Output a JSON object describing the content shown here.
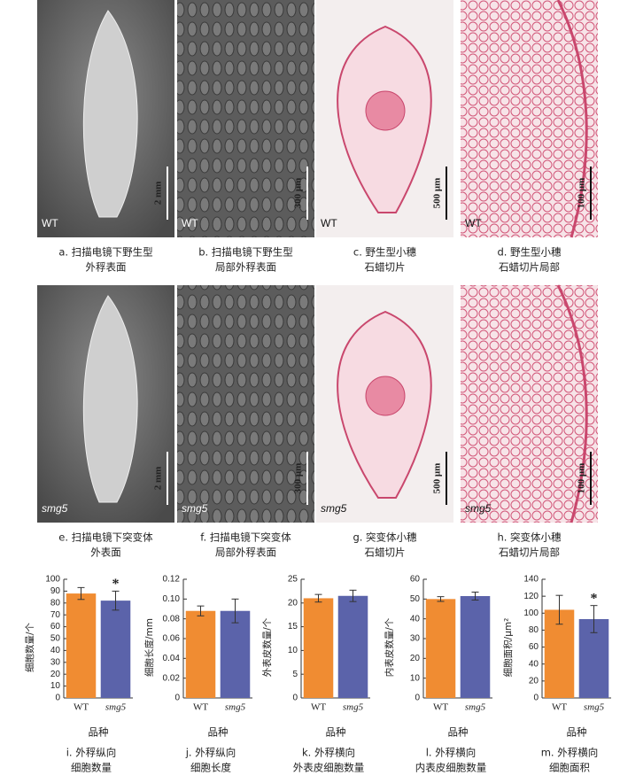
{
  "image_panels": [
    {
      "label": "WT",
      "scale": "2 mm",
      "caption": [
        "a.  扫描电镜下野生型",
        "外稃表面"
      ]
    },
    {
      "label": "WT",
      "scale": "300 μm",
      "caption": [
        "b.  扫描电镜下野生型",
        "局部外稃表面"
      ]
    },
    {
      "label": "WT",
      "scale": "500 μm",
      "caption": [
        "c.  野生型小穗",
        "石蜡切片"
      ]
    },
    {
      "label": "WT",
      "scale": "100 μm",
      "caption": [
        "d.  野生型小穗",
        "石蜡切片局部"
      ]
    },
    {
      "label": "smg5",
      "scale": "2 mm",
      "caption": [
        "e.  扫描电镜下突变体",
        "外表面"
      ]
    },
    {
      "label": "smg5",
      "scale": "300 μm",
      "caption": [
        "f.  扫描电镜下突变体",
        "局部外稃表面"
      ]
    },
    {
      "label": "smg5",
      "scale": "500 μm",
      "caption": [
        "g.  突变体小穗",
        "石蜡切片"
      ]
    },
    {
      "label": "smg5",
      "scale": "100 μm",
      "caption": [
        "h.  突变体小穗",
        "石蜡切片局部"
      ]
    }
  ],
  "chart_data": [
    {
      "type": "bar",
      "ylabel": "细胞数量/个",
      "xlabel": "品种",
      "categories": [
        "WT",
        "smg5"
      ],
      "values": [
        88,
        82
      ],
      "errors": [
        5,
        8
      ],
      "significance": [
        null,
        "*"
      ],
      "colors": [
        "#f08c32",
        "#5b63aa"
      ],
      "ylim": [
        0,
        100
      ],
      "yticks": [
        0,
        10,
        20,
        30,
        40,
        50,
        60,
        70,
        80,
        90,
        100
      ],
      "caption": [
        "i.  外稃纵向",
        "细胞数量"
      ]
    },
    {
      "type": "bar",
      "ylabel": "细胞长度/mm",
      "xlabel": "品种",
      "categories": [
        "WT",
        "smg5"
      ],
      "values": [
        0.088,
        0.088
      ],
      "errors": [
        0.005,
        0.012
      ],
      "significance": [
        null,
        null
      ],
      "colors": [
        "#f08c32",
        "#5b63aa"
      ],
      "ylim": [
        0,
        0.12
      ],
      "yticks": [
        0,
        0.02,
        0.04,
        0.06,
        0.08,
        {
          "value": 0.1,
          "label": "0.10"
        },
        0.12
      ],
      "caption": [
        "j.  外稃纵向",
        "细胞长度"
      ]
    },
    {
      "type": "bar",
      "ylabel": "外表皮数量/个",
      "xlabel": "品种",
      "categories": [
        "WT",
        "smg5"
      ],
      "values": [
        21,
        21.5
      ],
      "errors": [
        0.8,
        1.2
      ],
      "significance": [
        null,
        null
      ],
      "colors": [
        "#f08c32",
        "#5b63aa"
      ],
      "ylim": [
        0,
        25
      ],
      "yticks": [
        0,
        5,
        10,
        15,
        20,
        25
      ],
      "caption": [
        "k.  外稃横向",
        "外表皮细胞数量"
      ]
    },
    {
      "type": "bar",
      "ylabel": "内表皮数量/个",
      "xlabel": "品种",
      "categories": [
        "WT",
        "smg5"
      ],
      "values": [
        50,
        51.5
      ],
      "errors": [
        1.2,
        2
      ],
      "significance": [
        null,
        null
      ],
      "colors": [
        "#f08c32",
        "#5b63aa"
      ],
      "ylim": [
        0,
        60
      ],
      "yticks": [
        0,
        10,
        20,
        30,
        40,
        50,
        60
      ],
      "caption": [
        "l.  外稃横向",
        "内表皮细胞数量"
      ]
    },
    {
      "type": "bar",
      "ylabel": "细胞面积/μm²",
      "xlabel": "品种",
      "categories": [
        "WT",
        "smg5"
      ],
      "values": [
        104,
        93
      ],
      "errors": [
        17,
        16
      ],
      "significance": [
        null,
        "*"
      ],
      "colors": [
        "#f08c32",
        "#5b63aa"
      ],
      "ylim": [
        0,
        140
      ],
      "yticks": [
        0,
        20,
        40,
        60,
        80,
        100,
        120,
        140
      ],
      "caption": [
        "m.  外稃横向",
        "细胞面积"
      ]
    }
  ]
}
